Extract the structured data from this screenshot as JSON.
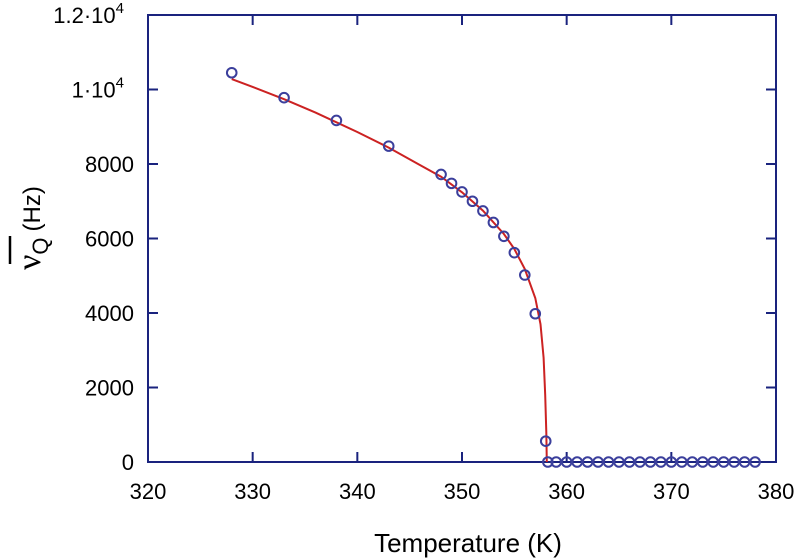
{
  "chart_data": {
    "type": "scatter",
    "title": "",
    "xlabel": "Temperature  (K)",
    "ylabel_symbol": "ν",
    "ylabel_subscript": "Q",
    "ylabel_unit": "(Hz)",
    "xlim": [
      320,
      380
    ],
    "ylim": [
      0,
      12000
    ],
    "x_ticks": [
      {
        "value": 320,
        "label": "320"
      },
      {
        "value": 330,
        "label": "330"
      },
      {
        "value": 340,
        "label": "340"
      },
      {
        "value": 350,
        "label": "350"
      },
      {
        "value": 360,
        "label": "360"
      },
      {
        "value": 370,
        "label": "370"
      },
      {
        "value": 380,
        "label": "380"
      }
    ],
    "y_ticks": [
      {
        "value": 0,
        "label": "0"
      },
      {
        "value": 2000,
        "label": "2000"
      },
      {
        "value": 4000,
        "label": "4000"
      },
      {
        "value": 6000,
        "label": "6000"
      },
      {
        "value": 8000,
        "label": "8000"
      },
      {
        "value": 10000,
        "label": "1·10",
        "exp": "4"
      },
      {
        "value": 12000,
        "label": "1.2·10",
        "exp": "4"
      }
    ],
    "grid": false,
    "colors": {
      "axis": "#1a237e",
      "marker": "#3b3f9c",
      "fit": "#cc2222"
    },
    "series": [
      {
        "marker": "open-circle",
        "points": [
          [
            328,
            10450
          ],
          [
            333,
            9780
          ],
          [
            338,
            9170
          ],
          [
            343,
            8480
          ],
          [
            348,
            7720
          ],
          [
            349,
            7480
          ],
          [
            350,
            7250
          ],
          [
            351,
            7000
          ],
          [
            352,
            6740
          ],
          [
            353,
            6430
          ],
          [
            354,
            6060
          ],
          [
            355,
            5620
          ],
          [
            356,
            5020
          ],
          [
            357,
            3980
          ],
          [
            358,
            560
          ],
          [
            358.2,
            0
          ],
          [
            359,
            0
          ],
          [
            360,
            0
          ],
          [
            361,
            0
          ],
          [
            362,
            0
          ],
          [
            363,
            0
          ],
          [
            364,
            0
          ],
          [
            365,
            0
          ],
          [
            366,
            0
          ],
          [
            367,
            0
          ],
          [
            368,
            0
          ],
          [
            369,
            0
          ],
          [
            370,
            0
          ],
          [
            371,
            0
          ],
          [
            372,
            0
          ],
          [
            373,
            0
          ],
          [
            374,
            0
          ],
          [
            375,
            0
          ],
          [
            376,
            0
          ],
          [
            377,
            0
          ],
          [
            378,
            0
          ]
        ]
      },
      {
        "marker": "line",
        "points": [
          [
            328,
            10280
          ],
          [
            330,
            10070
          ],
          [
            333,
            9740
          ],
          [
            336,
            9380
          ],
          [
            340,
            8860
          ],
          [
            343,
            8440
          ],
          [
            346,
            7970
          ],
          [
            348,
            7660
          ],
          [
            350,
            7240
          ],
          [
            352,
            6750
          ],
          [
            354,
            6120
          ],
          [
            355,
            5720
          ],
          [
            356,
            5180
          ],
          [
            357,
            4400
          ],
          [
            357.5,
            3700
          ],
          [
            357.8,
            2800
          ],
          [
            357.95,
            1800
          ],
          [
            358.05,
            800
          ],
          [
            358.1,
            0
          ]
        ]
      }
    ]
  }
}
